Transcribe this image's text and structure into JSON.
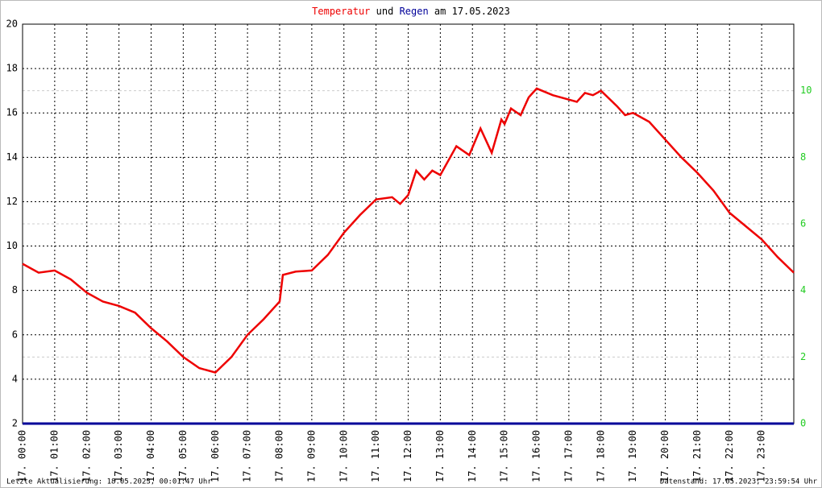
{
  "chart_data": {
    "type": "line",
    "title_parts": [
      "Temperatur",
      "und",
      "Regen",
      "am 17.05.2023"
    ],
    "footer_left": "Letzte Aktualisierung: 18.05.2023, 00:01:47 Uhr",
    "footer_right": "Datenstand: 17.05.2023, 23:59:54 Uhr",
    "xlim": [
      0,
      24
    ],
    "xticks": [
      {
        "value": 0,
        "label": "17. 00:00"
      },
      {
        "value": 1,
        "label": "17. 01:00"
      },
      {
        "value": 2,
        "label": "17. 02:00"
      },
      {
        "value": 3,
        "label": "17. 03:00"
      },
      {
        "value": 4,
        "label": "17. 04:00"
      },
      {
        "value": 5,
        "label": "17. 05:00"
      },
      {
        "value": 6,
        "label": "17. 06:00"
      },
      {
        "value": 7,
        "label": "17. 07:00"
      },
      {
        "value": 8,
        "label": "17. 08:00"
      },
      {
        "value": 9,
        "label": "17. 09:00"
      },
      {
        "value": 10,
        "label": "17. 10:00"
      },
      {
        "value": 11,
        "label": "17. 11:00"
      },
      {
        "value": 12,
        "label": "17. 12:00"
      },
      {
        "value": 13,
        "label": "17. 13:00"
      },
      {
        "value": 14,
        "label": "17. 14:00"
      },
      {
        "value": 15,
        "label": "17. 15:00"
      },
      {
        "value": 16,
        "label": "17. 16:00"
      },
      {
        "value": 17,
        "label": "17. 17:00"
      },
      {
        "value": 18,
        "label": "17. 18:00"
      },
      {
        "value": 19,
        "label": "17. 19:00"
      },
      {
        "value": 20,
        "label": "17. 20:00"
      },
      {
        "value": 21,
        "label": "17. 21:00"
      },
      {
        "value": 22,
        "label": "17. 22:00"
      },
      {
        "value": 23,
        "label": "17. 23:00"
      }
    ],
    "ylim": [
      2,
      20
    ],
    "yticks": [
      2,
      4,
      6,
      8,
      10,
      12,
      14,
      16,
      18,
      20
    ],
    "y2lim": [
      0,
      12
    ],
    "y2ticks": [
      0,
      2,
      4,
      6,
      8,
      10
    ],
    "grid": true,
    "series": [
      {
        "name": "Temperatur",
        "color": "#ee0000",
        "x": [
          0,
          0.5,
          1,
          1.5,
          2,
          2.5,
          3,
          3.5,
          4,
          4.5,
          5,
          5.5,
          6,
          6.5,
          7,
          7.5,
          8,
          8.1,
          8.5,
          9,
          9.5,
          10,
          10.5,
          11,
          11.5,
          11.75,
          12,
          12.25,
          12.5,
          12.75,
          13,
          13.5,
          13.9,
          14.25,
          14.6,
          14.9,
          15,
          15.2,
          15.5,
          15.75,
          16,
          16.5,
          16.75,
          17,
          17.25,
          17.5,
          17.75,
          18,
          18.5,
          18.75,
          19,
          19.5,
          20,
          20.5,
          21,
          21.5,
          22,
          22.5,
          23,
          23.5,
          24
        ],
        "values": [
          9.2,
          8.8,
          8.9,
          8.5,
          7.9,
          7.5,
          7.3,
          7.0,
          6.3,
          5.7,
          5.0,
          4.5,
          4.3,
          5.0,
          6.0,
          6.7,
          7.5,
          8.7,
          8.85,
          8.9,
          9.6,
          10.6,
          11.4,
          12.1,
          12.2,
          11.9,
          12.3,
          13.4,
          13.0,
          13.4,
          13.2,
          14.5,
          14.1,
          15.3,
          14.2,
          15.7,
          15.5,
          16.2,
          15.9,
          16.7,
          17.1,
          16.8,
          16.7,
          16.6,
          16.5,
          16.9,
          16.8,
          17.0,
          16.3,
          15.9,
          16.0,
          15.6,
          14.8,
          14.0,
          13.3,
          12.5,
          11.5,
          10.9,
          10.3,
          9.5,
          8.8
        ]
      },
      {
        "name": "Regen",
        "color": "#000099",
        "axis": "y2",
        "x": [
          0,
          24
        ],
        "values": [
          0,
          0
        ]
      }
    ]
  }
}
